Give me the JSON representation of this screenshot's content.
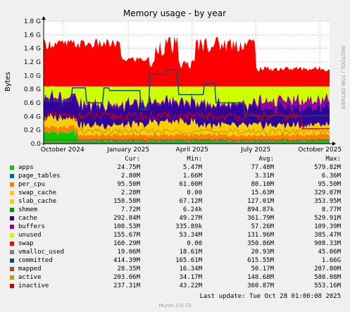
{
  "chart_data": {
    "type": "area",
    "title": "Memory usage - by year",
    "ylabel": "Bytes",
    "side_label": "RRDTOOL / TOBI OETIKER",
    "y_ticks": [
      "0.0",
      "0.2 G",
      "0.4 G",
      "0.6 G",
      "0.8 G",
      "1.0 G",
      "1.2 G",
      "1.4 G",
      "1.6 G",
      "1.8 G"
    ],
    "ylim": [
      0,
      1.8
    ],
    "x_ticks": [
      "October 2024",
      "January 2025",
      "April 2025",
      "July 2025",
      "October 2025"
    ],
    "columns": {
      "cur": "Cur:",
      "min": "Min:",
      "avg": "Avg:",
      "max": "Max:"
    },
    "series": [
      {
        "name": "apps",
        "color": "#00cc00",
        "cur": "24.75M",
        "min": "5.47M",
        "avg": "77.48M",
        "max": "579.82M"
      },
      {
        "name": "page_tables",
        "color": "#0066b3",
        "cur": "2.80M",
        "min": "1.66M",
        "avg": "3.31M",
        "max": "6.36M"
      },
      {
        "name": "per_cpu",
        "color": "#ff8000",
        "cur": "95.50M",
        "min": "61.00M",
        "avg": "80.10M",
        "max": "95.50M"
      },
      {
        "name": "swap_cache",
        "color": "#ffcc00",
        "cur": "2.28M",
        "min": "0.00",
        "avg": "15.63M",
        "max": "329.07M"
      },
      {
        "name": "slab_cache",
        "color": "#ffcc00",
        "cur": "158.58M",
        "min": "67.12M",
        "avg": "127.01M",
        "max": "353.95M"
      },
      {
        "name": "shmem",
        "color": "#008f00",
        "cur": "7.72M",
        "min": "6.24k",
        "avg": "894.87k",
        "max": "8.77M"
      },
      {
        "name": "cache",
        "color": "#330099",
        "cur": "292.84M",
        "min": "49.27M",
        "avg": "361.79M",
        "max": "529.91M"
      },
      {
        "name": "buffers",
        "color": "#990099",
        "cur": "108.53M",
        "min": "335.89k",
        "avg": "57.26M",
        "max": "109.39M"
      },
      {
        "name": "unused",
        "color": "#ccff00",
        "cur": "155.67M",
        "min": "53.34M",
        "avg": "131.96M",
        "max": "385.47M"
      },
      {
        "name": "swap",
        "color": "#ff0000",
        "cur": "160.29M",
        "min": "0.00",
        "avg": "350.86M",
        "max": "908.33M"
      },
      {
        "name": "vmalloc_used",
        "color": "#808080",
        "cur": "19.06M",
        "min": "18.61M",
        "avg": "20.93M",
        "max": "45.06M"
      },
      {
        "name": "committed",
        "color": "#0f4c75",
        "cur": "414.39M",
        "min": "165.61M",
        "avg": "615.55M",
        "max": "1.66G"
      },
      {
        "name": "mapped",
        "color": "#a0522d",
        "cur": "28.35M",
        "min": "16.34M",
        "avg": "50.17M",
        "max": "207.80M"
      },
      {
        "name": "active",
        "color": "#c0a000",
        "cur": "203.06M",
        "min": "34.17M",
        "avg": "148.68M",
        "max": "580.08M"
      },
      {
        "name": "inactive",
        "color": "#cc0000",
        "cur": "237.31M",
        "min": "43.22M",
        "avg": "360.87M",
        "max": "553.16M"
      }
    ],
    "last_update": "Last update: Tue Oct 28 01:00:08 2025",
    "footer": "Munin 2.0.73"
  }
}
